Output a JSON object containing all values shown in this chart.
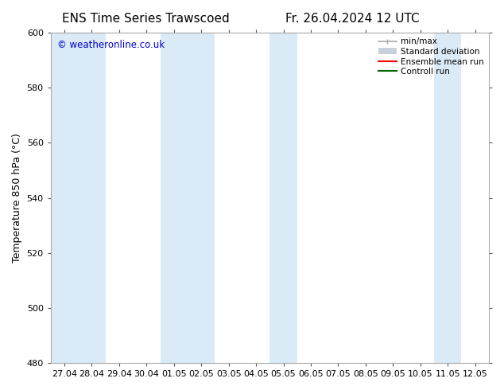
{
  "title_left": "ENS Time Series Trawscoed",
  "title_right": "Fr. 26.04.2024 12 UTC",
  "ylabel": "Temperature 850 hPa (°C)",
  "ylim": [
    480,
    600
  ],
  "yticks": [
    480,
    500,
    520,
    540,
    560,
    580,
    600
  ],
  "x_labels": [
    "27.04",
    "28.04",
    "29.04",
    "30.04",
    "01.05",
    "02.05",
    "03.05",
    "04.05",
    "05.05",
    "06.05",
    "07.05",
    "08.05",
    "09.05",
    "10.05",
    "11.05",
    "12.05"
  ],
  "watermark": "© weatheronline.co.uk",
  "watermark_color": "#0000cc",
  "bg_color": "#ffffff",
  "plot_bg_color": "#ffffff",
  "band_color": "#daeaf7",
  "shaded_indices": [
    0,
    1,
    4,
    5,
    8,
    14
  ],
  "legend_items": [
    {
      "label": "min/max"
    },
    {
      "label": "Standard deviation"
    },
    {
      "label": "Ensemble mean run"
    },
    {
      "label": "Controll run"
    }
  ],
  "minmax_color": "#aaaaaa",
  "stddev_color": "#c8d0dc",
  "ensemble_color": "#ff0000",
  "control_color": "#006600",
  "font_family": "DejaVu Sans",
  "title_fontsize": 11,
  "label_fontsize": 9,
  "tick_fontsize": 8,
  "legend_fontsize": 7.5,
  "n_points": 16
}
